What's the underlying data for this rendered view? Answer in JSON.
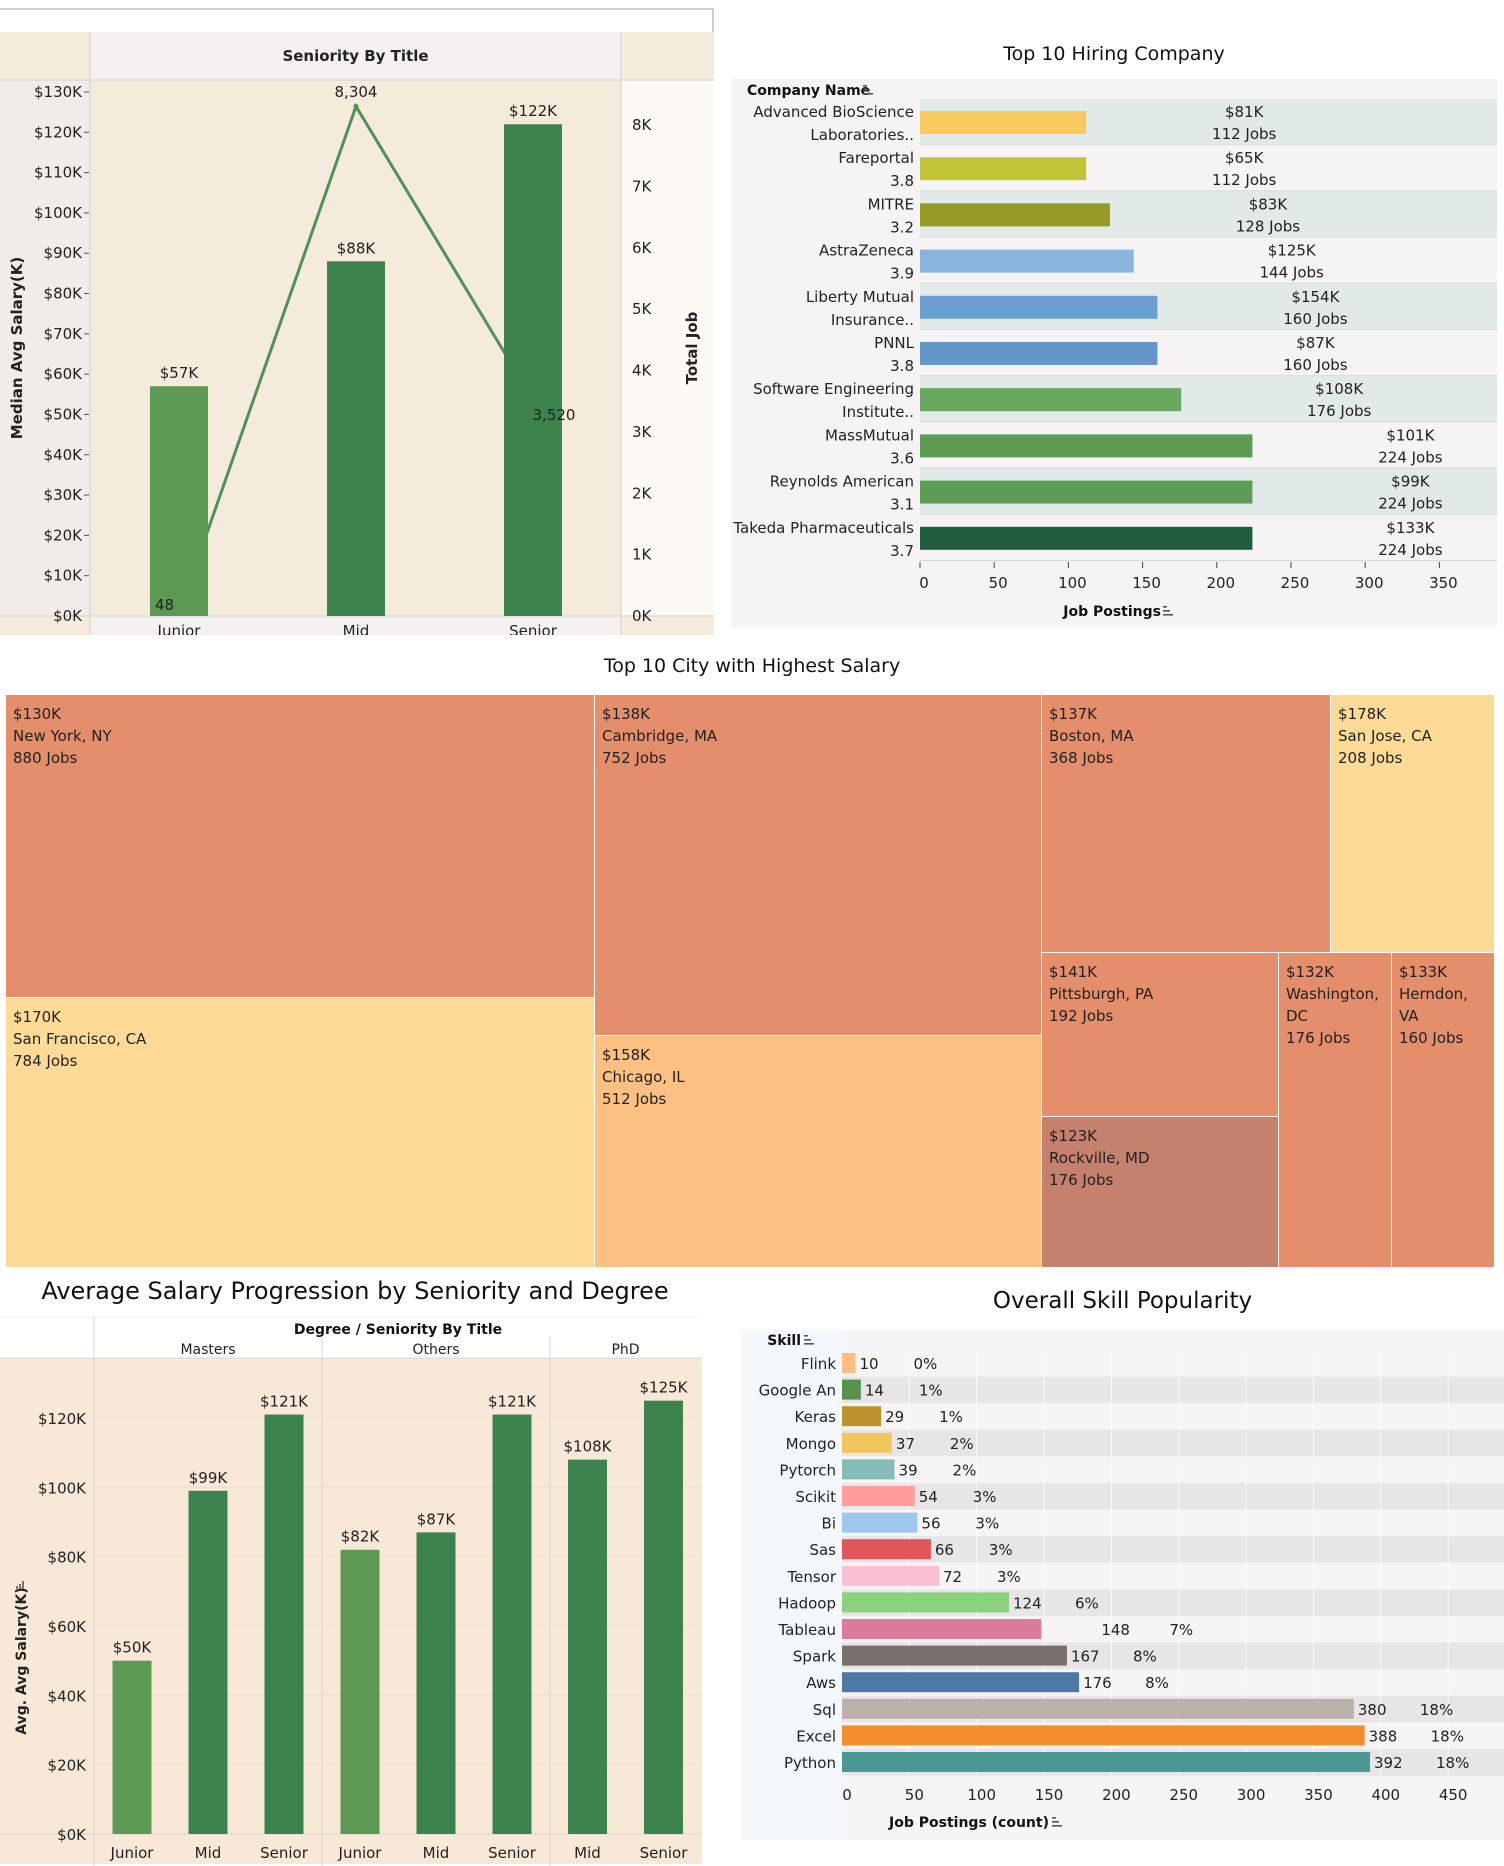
{
  "charts": {
    "seniority": {
      "header": "Seniority By Title",
      "y_label": "Median Avg Salary(K)",
      "y2_label": "Total Job"
    },
    "hiring": {
      "title": "Top 10 Hiring Company",
      "row_header": "Company Name",
      "x_label": "Job Postings"
    },
    "city": {
      "title": "Top  10 City with Highest Salary"
    },
    "degree": {
      "title": "Average Salary Progression by Seniority and Degree",
      "header": "Degree  /  Seniority By Title",
      "y_label": "Avg. Avg Salary(K)"
    },
    "skill": {
      "title": "Overall Skill Popularity",
      "row_header": "Skill",
      "x_label": "Job Postings (count)"
    }
  },
  "chart_data": [
    {
      "id": "seniority",
      "type": "bar",
      "title": "",
      "xlabel": "Seniority By Title",
      "ylabel": "Median Avg Salary(K)",
      "y2label": "Total Job",
      "categories": [
        "Junior",
        "Mid",
        "Senior"
      ],
      "series": [
        {
          "name": "Median Avg Salary(K)",
          "type": "bar",
          "values": [
            57,
            88,
            122
          ],
          "labels": [
            "$57K",
            "$88K",
            "$122K"
          ],
          "colors": [
            "#5c9a54",
            "#3d834d",
            "#3d834d"
          ]
        },
        {
          "name": "Total Job",
          "type": "line",
          "axis": "right",
          "values": [
            48,
            8304,
            3520
          ],
          "labels": [
            "48",
            "8,304",
            "3,520"
          ],
          "color": "#4f9158"
        }
      ],
      "ylim": [
        0,
        130
      ],
      "yticks": [
        "$0K",
        "$10K",
        "$20K",
        "$30K",
        "$40K",
        "$50K",
        "$60K",
        "$70K",
        "$80K",
        "$90K",
        "$100K",
        "$110K",
        "$120K",
        "$130K"
      ],
      "y2lim": [
        0,
        8000
      ],
      "y2ticks": [
        "0K",
        "1K",
        "2K",
        "3K",
        "4K",
        "5K",
        "6K",
        "7K",
        "8K"
      ],
      "grid": false
    },
    {
      "id": "hiring",
      "type": "bar",
      "orientation": "horizontal",
      "title": "Top 10 Hiring Company",
      "xlabel": "Job Postings",
      "ylabel": "Company Name",
      "categories": [
        {
          "name": "Advanced BioScience",
          "sub": "Laboratories..",
          "salary": "$81K",
          "jobs_label": "112 Jobs",
          "value": 112,
          "color": "#f8c95f"
        },
        {
          "name": "Fareportal",
          "sub": "3.8",
          "salary": "$65K",
          "jobs_label": "112 Jobs",
          "value": 112,
          "color": "#c4c438"
        },
        {
          "name": "MITRE",
          "sub": "3.2",
          "salary": "$83K",
          "jobs_label": "128 Jobs",
          "value": 128,
          "color": "#969b25"
        },
        {
          "name": "AstraZeneca",
          "sub": "3.9",
          "salary": "$125K",
          "jobs_label": "144 Jobs",
          "value": 144,
          "color": "#89b4de"
        },
        {
          "name": "Liberty Mutual",
          "sub": "Insurance..",
          "salary": "$154K",
          "jobs_label": "160 Jobs",
          "value": 160,
          "color": "#6b9fcf"
        },
        {
          "name": "PNNL",
          "sub": "3.8",
          "salary": "$87K",
          "jobs_label": "160 Jobs",
          "value": 160,
          "color": "#6496c8"
        },
        {
          "name": "Software Engineering",
          "sub": "Institute..",
          "salary": "$108K",
          "jobs_label": "176 Jobs",
          "value": 176,
          "color": "#69a85f"
        },
        {
          "name": "MassMutual",
          "sub": "3.6",
          "salary": "$101K",
          "jobs_label": "224 Jobs",
          "value": 224,
          "color": "#5c9c54"
        },
        {
          "name": "Reynolds American",
          "sub": "3.1",
          "salary": "$99K",
          "jobs_label": "224 Jobs",
          "value": 224,
          "color": "#5c9c54"
        },
        {
          "name": "Takeda Pharmaceuticals",
          "sub": "3.7",
          "salary": "$133K",
          "jobs_label": "224 Jobs",
          "value": 224,
          "color": "#1f5f3d"
        }
      ],
      "xlim": [
        0,
        380
      ],
      "xticks": [
        0,
        50,
        100,
        150,
        200,
        250,
        300,
        350
      ],
      "grid": false
    },
    {
      "id": "city",
      "type": "treemap",
      "title": "Top  10 City with Highest Salary",
      "items": [
        {
          "city": "New York, NY",
          "salary": "$130K",
          "jobs": 880,
          "jobs_label": "880 Jobs",
          "color": "#e58e6b"
        },
        {
          "city": "San Francisco, CA",
          "salary": "$170K",
          "jobs": 784,
          "jobs_label": "784 Jobs",
          "color": "#fddb96"
        },
        {
          "city": "Cambridge, MA",
          "salary": "$138K",
          "jobs": 752,
          "jobs_label": "752 Jobs",
          "color": "#e58e6b"
        },
        {
          "city": "Chicago, IL",
          "salary": "$158K",
          "jobs": 512,
          "jobs_label": "512 Jobs",
          "color": "#fcc083"
        },
        {
          "city": "Boston, MA",
          "salary": "$137K",
          "jobs": 368,
          "jobs_label": "368 Jobs",
          "color": "#e58e6b"
        },
        {
          "city": "San Jose, CA",
          "salary": "$178K",
          "jobs": 208,
          "jobs_label": "208 Jobs",
          "color": "#fddb96"
        },
        {
          "city": "Pittsburgh, PA",
          "salary": "$141K",
          "jobs": 192,
          "jobs_label": "192 Jobs",
          "color": "#e58e6b"
        },
        {
          "city": "Washington,\nDC",
          "salary": "$132K",
          "jobs": 176,
          "jobs_label": "176 Jobs",
          "color": "#e58e6b"
        },
        {
          "city": "Rockville, MD",
          "salary": "$123K",
          "jobs": 176,
          "jobs_label": "176 Jobs",
          "color": "#c5806e"
        },
        {
          "city": "Herndon,\nVA",
          "salary": "$133K",
          "jobs": 160,
          "jobs_label": "160 Jobs",
          "color": "#e58e6b"
        }
      ]
    },
    {
      "id": "degree",
      "type": "bar",
      "title": "Average Salary Progression by Seniority and Degree",
      "xlabel": "Degree / Seniority By Title",
      "ylabel": "Avg. Avg Salary(K)",
      "groups": [
        {
          "name": "Masters",
          "categories": [
            "Junior",
            "Mid",
            "Senior"
          ],
          "values": [
            50,
            99,
            121
          ],
          "labels": [
            "$50K",
            "$99K",
            "$121K"
          ]
        },
        {
          "name": "Others",
          "categories": [
            "Junior",
            "Mid",
            "Senior"
          ],
          "values": [
            82,
            87,
            121
          ],
          "labels": [
            "$82K",
            "$87K",
            "$121K"
          ]
        },
        {
          "name": "PhD",
          "categories": [
            "Mid",
            "Senior"
          ],
          "values": [
            108,
            125
          ],
          "labels": [
            "$108K",
            "$125K"
          ]
        }
      ],
      "colors": {
        "Junior": "#5c9a54",
        "Mid": "#3d834d",
        "Senior": "#3d834d"
      },
      "ylim": [
        0,
        135
      ],
      "yticks": [
        "$0K",
        "$20K",
        "$40K",
        "$60K",
        "$80K",
        "$100K",
        "$120K"
      ],
      "grid": true
    },
    {
      "id": "skill",
      "type": "bar",
      "orientation": "horizontal",
      "title": "Overall Skill Popularity",
      "xlabel": "Job Postings (count)",
      "ylabel": "Skill",
      "categories": [
        "Flink",
        "Google An",
        "Keras",
        "Mongo",
        "Pytorch",
        "Scikit",
        "Bi",
        "Sas",
        "Tensor",
        "Hadoop",
        "Tableau",
        "Spark",
        "Aws",
        "Sql",
        "Excel",
        "Python"
      ],
      "values": [
        10,
        14,
        29,
        37,
        39,
        54,
        56,
        66,
        72,
        124,
        148,
        167,
        176,
        380,
        388,
        392
      ],
      "percents": [
        "0%",
        "1%",
        "1%",
        "2%",
        "2%",
        "3%",
        "3%",
        "3%",
        "3%",
        "6%",
        "7%",
        "8%",
        "8%",
        "18%",
        "18%",
        "18%"
      ],
      "colors": [
        "#ffbe7d",
        "#59924f",
        "#bd922b",
        "#f2c55c",
        "#86bcb6",
        "#ff9d9a",
        "#9dc7ec",
        "#e15759",
        "#fabfd2",
        "#8cd17d",
        "#d97b99",
        "#79706e",
        "#4e79a7",
        "#bab0ac",
        "#f28e2b",
        "#499894"
      ],
      "xlim": [
        0,
        480
      ],
      "xticks": [
        0,
        50,
        100,
        150,
        200,
        250,
        300,
        350,
        400,
        450
      ],
      "grid": true
    }
  ]
}
